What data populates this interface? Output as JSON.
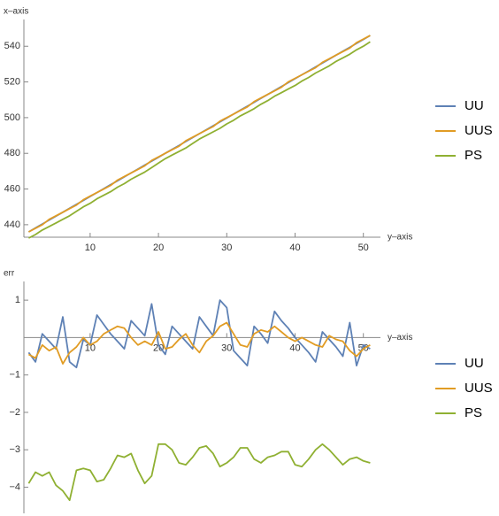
{
  "chart_data": [
    {
      "type": "line",
      "y_label": "x–axis",
      "x_label": "y–axis",
      "x": [
        1,
        2,
        3,
        4,
        5,
        6,
        7,
        8,
        9,
        10,
        11,
        12,
        13,
        14,
        15,
        16,
        17,
        18,
        19,
        20,
        21,
        22,
        23,
        24,
        25,
        26,
        27,
        28,
        29,
        30,
        31,
        32,
        33,
        34,
        35,
        36,
        37,
        38,
        39,
        40,
        41,
        42,
        43,
        44,
        45,
        46,
        47,
        48,
        49,
        50,
        51
      ],
      "series": [
        {
          "name": "UU",
          "color": "#5e81b5",
          "values": [
            436,
            438.2,
            440.4,
            442.6,
            444.8,
            447,
            449.2,
            451.4,
            453.6,
            455.8,
            458,
            460.2,
            462.4,
            464.6,
            466.8,
            469,
            471.2,
            473.4,
            475.6,
            477.8,
            480,
            482.2,
            484.4,
            486.6,
            488.8,
            491,
            493.2,
            495.4,
            497.6,
            499.8,
            502,
            504.2,
            506.4,
            508.6,
            510.8,
            513,
            515.2,
            517.4,
            519.6,
            521.8,
            524,
            526.2,
            528.4,
            530.6,
            532.8,
            535,
            537.2,
            539.4,
            541.6,
            543.8,
            546
          ]
        },
        {
          "name": "UUS",
          "color": "#e19c24",
          "values": [
            436,
            438,
            440,
            443,
            445,
            447,
            449,
            451,
            454,
            456,
            458,
            460,
            462,
            465,
            467,
            469,
            471,
            473,
            476,
            478,
            480,
            482,
            484,
            487,
            489,
            491,
            493,
            495,
            498,
            500,
            502,
            504,
            506,
            509,
            511,
            513,
            515,
            517,
            520,
            522,
            524,
            526,
            528,
            531,
            533,
            535,
            537,
            539,
            542,
            544,
            546
          ]
        },
        {
          "name": "PS",
          "color": "#8fb032",
          "values": [
            432.5,
            434.5,
            437,
            439,
            441,
            443,
            445,
            447.5,
            450,
            452,
            454.5,
            456.5,
            458.5,
            461,
            463,
            465.5,
            467.5,
            469.5,
            472,
            474.5,
            477,
            479,
            481,
            483,
            485.5,
            488,
            490,
            492,
            494,
            496.5,
            498.5,
            501,
            503,
            505,
            507.5,
            509.5,
            512,
            514,
            516,
            518,
            520.5,
            522.5,
            525,
            527,
            529,
            531.5,
            533.5,
            535.5,
            538,
            540,
            542.5
          ]
        }
      ],
      "xlim": [
        0.3,
        52.5
      ],
      "xticks": [
        10,
        20,
        30,
        40,
        50
      ],
      "ylim": [
        433,
        555
      ],
      "yticks": [
        440,
        460,
        480,
        500,
        520,
        540
      ]
    },
    {
      "type": "line",
      "y_label": "err",
      "x_label": "y–axis",
      "x": [
        1,
        2,
        3,
        4,
        5,
        6,
        7,
        8,
        9,
        10,
        11,
        12,
        13,
        14,
        15,
        16,
        17,
        18,
        19,
        20,
        21,
        22,
        23,
        24,
        25,
        26,
        27,
        28,
        29,
        30,
        31,
        32,
        33,
        34,
        35,
        36,
        37,
        38,
        39,
        40,
        41,
        42,
        43,
        44,
        45,
        46,
        47,
        48,
        49,
        50,
        51
      ],
      "series": [
        {
          "name": "UU",
          "color": "#5e81b5",
          "values": [
            -0.4,
            -0.65,
            0.1,
            -0.1,
            -0.3,
            0.55,
            -0.65,
            -0.8,
            -0.05,
            -0.2,
            0.6,
            0.35,
            0.1,
            -0.1,
            -0.3,
            0.45,
            0.25,
            0.05,
            0.9,
            -0.2,
            -0.45,
            0.3,
            0.1,
            -0.1,
            -0.3,
            0.55,
            0.3,
            0.05,
            1.0,
            0.8,
            -0.35,
            -0.55,
            -0.75,
            0.3,
            0.1,
            -0.15,
            0.7,
            0.45,
            0.25,
            0.0,
            -0.2,
            -0.4,
            -0.65,
            0.15,
            -0.05,
            -0.25,
            -0.5,
            0.4,
            -0.75,
            -0.2,
            -0.3
          ]
        },
        {
          "name": "UUS",
          "color": "#e19c24",
          "values": [
            -0.45,
            -0.55,
            -0.2,
            -0.35,
            -0.25,
            -0.7,
            -0.4,
            -0.25,
            0.0,
            -0.2,
            -0.1,
            0.1,
            0.2,
            0.3,
            0.25,
            0.0,
            -0.2,
            -0.1,
            -0.2,
            0.15,
            -0.3,
            -0.25,
            -0.05,
            0.1,
            -0.2,
            -0.4,
            -0.1,
            0.05,
            0.3,
            0.4,
            0.1,
            -0.2,
            -0.25,
            0.1,
            0.2,
            0.15,
            0.3,
            0.15,
            0.0,
            -0.1,
            0.0,
            -0.1,
            -0.2,
            -0.25,
            0.05,
            -0.05,
            -0.1,
            -0.35,
            -0.5,
            -0.3,
            -0.2
          ]
        },
        {
          "name": "PS",
          "color": "#8fb032",
          "values": [
            -3.9,
            -3.6,
            -3.7,
            -3.6,
            -3.95,
            -4.1,
            -4.35,
            -3.55,
            -3.5,
            -3.55,
            -3.85,
            -3.8,
            -3.5,
            -3.15,
            -3.2,
            -3.1,
            -3.55,
            -3.9,
            -3.7,
            -2.85,
            -2.85,
            -3.0,
            -3.35,
            -3.4,
            -3.2,
            -2.95,
            -2.9,
            -3.1,
            -3.45,
            -3.35,
            -3.2,
            -2.95,
            -2.95,
            -3.25,
            -3.35,
            -3.2,
            -3.15,
            -3.05,
            -3.05,
            -3.4,
            -3.45,
            -3.25,
            -3.0,
            -2.85,
            -3.0,
            -3.2,
            -3.4,
            -3.25,
            -3.2,
            -3.3,
            -3.35
          ]
        }
      ],
      "xlim": [
        0.3,
        52.5
      ],
      "xticks": [
        10,
        20,
        30,
        40,
        50
      ],
      "ylim": [
        -4.7,
        1.5
      ],
      "yticks": [
        1,
        {
          "value": -1,
          "label": "−1"
        },
        {
          "value": -2,
          "label": "−2"
        },
        {
          "value": -3,
          "label": "−3"
        },
        {
          "value": -4,
          "label": "−4"
        }
      ]
    }
  ]
}
